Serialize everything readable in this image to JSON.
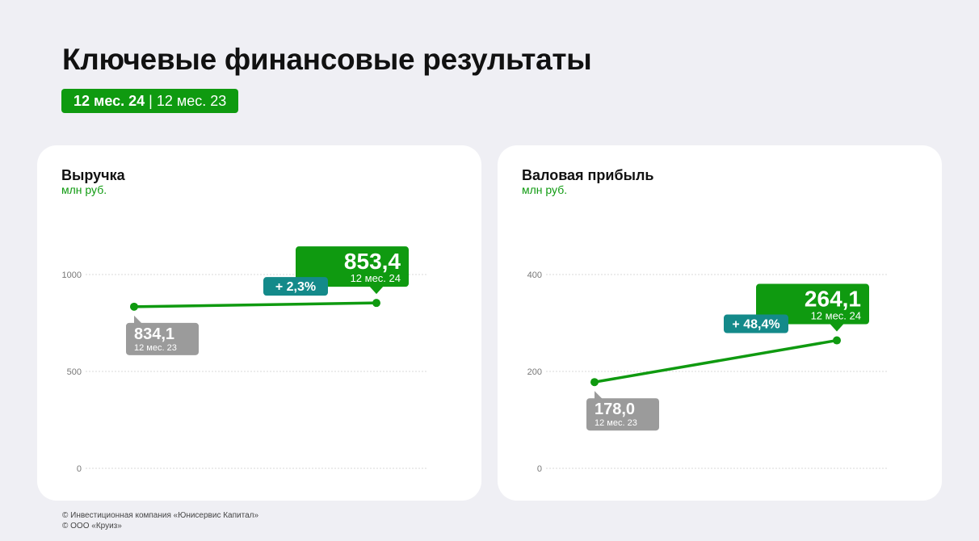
{
  "page": {
    "title": "Ключевые финансовые результаты",
    "period_current": "12 мес. 24",
    "period_separator": "|",
    "period_previous": "12 мес. 23"
  },
  "colors": {
    "accent_green": "#0f9a10",
    "change_teal": "#148a8a",
    "previous_gray": "#9b9b9b"
  },
  "chart_data": [
    {
      "type": "line",
      "title": "Выручка",
      "ylabel": "млн руб.",
      "ylim": [
        0,
        1000
      ],
      "yticks": [
        0,
        500,
        1000
      ],
      "ytick_labels": [
        "0",
        "500",
        "1000"
      ],
      "grid": true,
      "series": [
        {
          "points": [
            {
              "x": "12 мес. 23",
              "y": 834.1,
              "label": "834,1"
            },
            {
              "x": "12 мес. 24",
              "y": 853.4,
              "label": "853,4"
            }
          ]
        }
      ],
      "change_label": "+ 2,3%"
    },
    {
      "type": "line",
      "title": "Валовая прибыль",
      "ylabel": "млн руб.",
      "ylim": [
        0,
        400
      ],
      "yticks": [
        0,
        200,
        400
      ],
      "ytick_labels": [
        "0",
        "200",
        "400"
      ],
      "grid": true,
      "series": [
        {
          "points": [
            {
              "x": "12 мес. 23",
              "y": 178.0,
              "label": "178,0"
            },
            {
              "x": "12 мес. 24",
              "y": 264.1,
              "label": "264,1"
            }
          ]
        }
      ],
      "change_label": "+ 48,4%"
    }
  ],
  "footer": {
    "line1": "© Инвестиционная компания «Юнисервис Капитал»",
    "line2": "© ООО «Круиз»"
  }
}
